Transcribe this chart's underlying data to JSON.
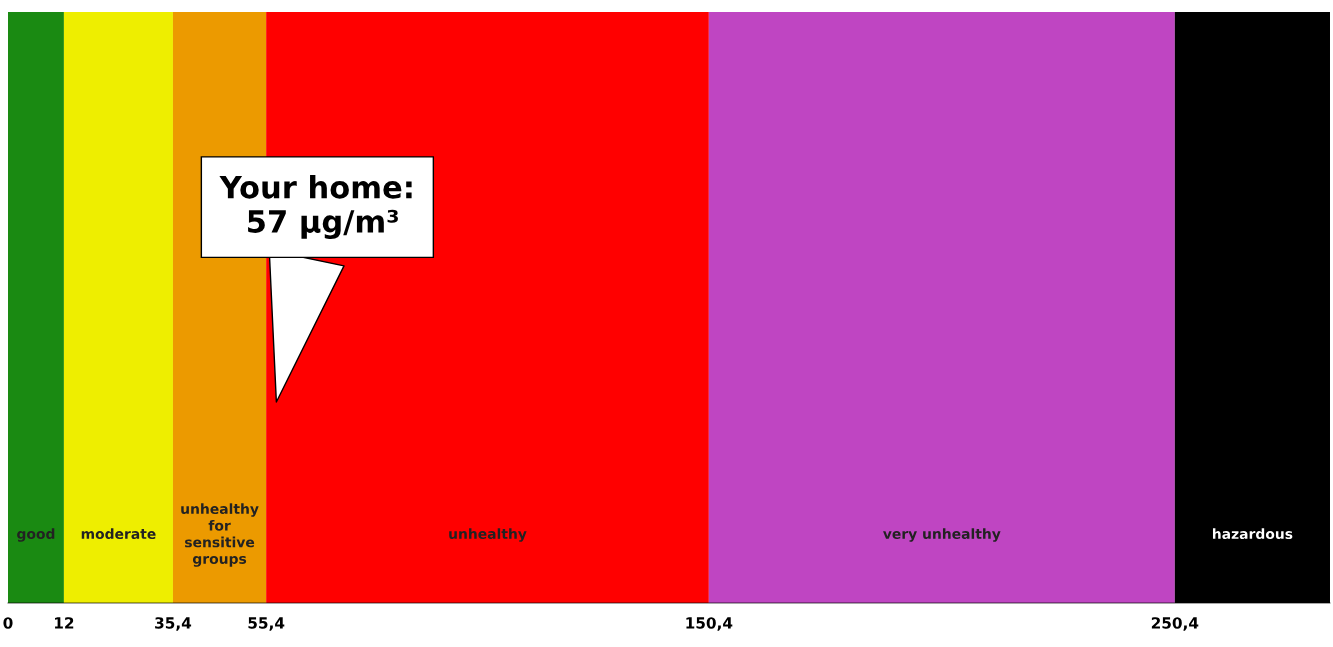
{
  "chart_data": {
    "type": "bar",
    "orientation": "horizontal",
    "stacked": true,
    "categories": [
      null
    ],
    "xlim": [
      0,
      283.7
    ],
    "xticks": [
      0,
      12,
      {
        "value": 35.4,
        "label": "35,4"
      },
      {
        "value": 55.4,
        "label": "55,4"
      },
      {
        "value": 150.4,
        "label": "150,4"
      },
      {
        "value": 250.4,
        "label": "250,4"
      }
    ],
    "tick_labels": "x",
    "series": [
      {
        "name": "good",
        "color": "#1a8a12",
        "values": [
          12
        ]
      },
      {
        "name": "moderate",
        "color": "#eeee00",
        "values": [
          23.4
        ]
      },
      {
        "name": "unhealthy\nfor\nsensitive\ngroups",
        "color": "#ec9a00",
        "values": [
          20
        ]
      },
      {
        "name": "unhealthy",
        "color": "#ff0000",
        "values": [
          95
        ]
      },
      {
        "name": "very unhealthy",
        "color": "#bf45c2",
        "values": [
          100
        ]
      },
      {
        "name": "hazardous",
        "color": "#000000",
        "values": [
          33.3
        ]
      }
    ],
    "annotations": [
      "Your home:\n 57 µg/m³"
    ]
  }
}
